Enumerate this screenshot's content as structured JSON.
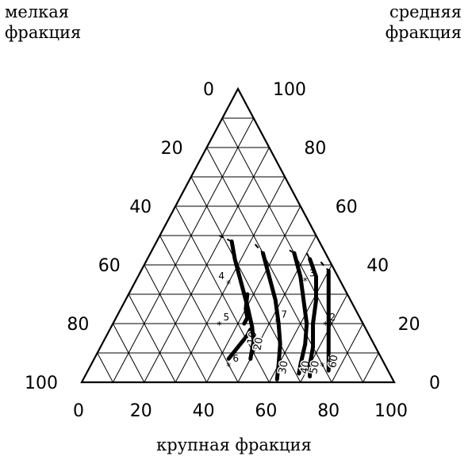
{
  "labels": {
    "fine_line1": "мелкая",
    "fine_line2": "фракция",
    "medium_line1": "средняя",
    "medium_line2": "фракция",
    "coarse": "крупная фракция"
  },
  "ticks": {
    "coarse": [
      "0",
      "20",
      "40",
      "60",
      "80",
      "100"
    ],
    "fine": [
      "100",
      "80",
      "60",
      "40",
      "20",
      "0"
    ],
    "medium": [
      "0",
      "20",
      "40",
      "60",
      "80",
      "100"
    ]
  },
  "points": [
    {
      "label": "1",
      "coarse": 74,
      "medium": 6
    },
    {
      "label": "2",
      "coarse": 68,
      "medium": 20
    },
    {
      "label": "3",
      "coarse": 54,
      "medium": 35
    },
    {
      "label": "4",
      "coarse": 30,
      "medium": 34
    },
    {
      "label": "5",
      "coarse": 34,
      "medium": 20
    },
    {
      "label": "6",
      "coarse": 44,
      "medium": 6
    },
    {
      "label": "7",
      "coarse": 52,
      "medium": 21
    }
  ],
  "curves": [
    {
      "label": "",
      "points": [
        [
          38,
          30
        ],
        [
          40,
          25
        ],
        [
          42,
          22
        ],
        [
          42,
          20
        ]
      ]
    },
    {
      "label": "10",
      "points": [
        [
          43,
          8
        ],
        [
          44,
          12
        ],
        [
          45,
          16
        ],
        [
          45,
          18
        ]
      ]
    },
    {
      "label": "20",
      "points": [
        [
          24,
          48
        ],
        [
          28,
          42
        ],
        [
          34,
          34
        ],
        [
          40,
          26
        ],
        [
          45,
          19
        ],
        [
          48,
          14
        ],
        [
          50,
          8
        ]
      ]
    },
    {
      "label": "30",
      "points": [
        [
          36,
          44
        ],
        [
          42,
          36
        ],
        [
          48,
          28
        ],
        [
          53,
          20
        ],
        [
          57,
          13
        ],
        [
          60,
          6
        ],
        [
          62,
          1
        ]
      ]
    },
    {
      "label": "40",
      "points": [
        [
          46,
          44
        ],
        [
          52,
          36
        ],
        [
          57,
          28
        ],
        [
          62,
          20
        ],
        [
          65,
          13
        ],
        [
          67,
          6
        ],
        [
          68,
          3
        ]
      ]
    },
    {
      "label": "50",
      "points": [
        [
          52,
          42
        ],
        [
          57,
          36
        ],
        [
          61,
          28
        ],
        [
          64,
          20
        ],
        [
          68,
          12
        ],
        [
          70,
          6
        ],
        [
          72,
          2
        ]
      ]
    },
    {
      "label": "60",
      "points": [
        [
          60,
          38
        ],
        [
          64,
          30
        ],
        [
          68,
          22
        ],
        [
          72,
          14
        ],
        [
          75,
          8
        ],
        [
          77,
          4
        ]
      ]
    }
  ],
  "dashed_lines": [
    {
      "points": [
        [
          19,
          50
        ],
        [
          24,
          48
        ]
      ]
    },
    {
      "points": [
        [
          32,
          47
        ],
        [
          36,
          44
        ]
      ]
    },
    {
      "points": [
        [
          44,
          45
        ],
        [
          46,
          44
        ]
      ]
    },
    {
      "points": [
        [
          50,
          44
        ],
        [
          52,
          42
        ]
      ]
    },
    {
      "points": [
        [
          56,
          41
        ],
        [
          60,
          38
        ]
      ]
    },
    {
      "points": [
        [
          60,
          29
        ],
        [
          61,
          28
        ]
      ]
    }
  ],
  "styles": {
    "line_color": "#000000",
    "curve_width": 5
  }
}
